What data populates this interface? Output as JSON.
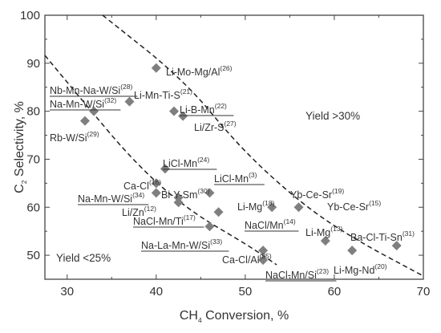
{
  "chart_data": {
    "type": "scatter",
    "title": "",
    "xlabel": {
      "prefix": "CH",
      "sub": "4",
      "suffix": " Conversion, %"
    },
    "ylabel": {
      "prefix": "C",
      "sub": "2",
      "suffix": " Selectivity, %"
    },
    "xlim": [
      27.5,
      70
    ],
    "ylim": [
      45,
      100
    ],
    "xticks": [
      30,
      40,
      50,
      60,
      70
    ],
    "yticks": [
      50,
      60,
      70,
      80,
      90,
      100
    ],
    "grid": false,
    "legend": "none",
    "marker_color": "#7f7f7f",
    "points": [
      {
        "x": 40,
        "y": 89,
        "label": "Li-Mo-Mg/Al",
        "ref": "(26)",
        "underline": false
      },
      {
        "x": 37,
        "y": 82,
        "label": "Nb-Mn-Na-W/Si",
        "ref": "(28)",
        "underline": true
      },
      {
        "x": 33,
        "y": 80,
        "label": "Na-Mn-W/Si",
        "ref": "(32)",
        "underline": true
      },
      {
        "x": 32,
        "y": 78,
        "label": "Rb-W/Si",
        "ref": "(29)",
        "underline": false
      },
      {
        "x": 42,
        "y": 80,
        "label": "Li-Mn-Ti-S",
        "ref": "(21)",
        "underline": false
      },
      {
        "x": 43,
        "y": 79,
        "label": "Li-B-Mn",
        "ref": "(22)",
        "underline": true
      },
      {
        "x": 41,
        "y": 68,
        "label": "LiCl-Mn",
        "ref": "(24)",
        "underline": true
      },
      {
        "x": 40,
        "y": 65,
        "label": "Ca-Cl",
        "ref": "(16)",
        "underline": false
      },
      {
        "x": 40,
        "y": 63,
        "label": "Bi-Y-Sm",
        "ref": "(30)",
        "underline": false
      },
      {
        "x": 42.5,
        "y": 62,
        "label": "Na-Mn-W/Si",
        "ref": "(34)",
        "underline": true
      },
      {
        "x": 42.5,
        "y": 61,
        "label": "Li/Zn",
        "ref": "(12)",
        "underline": false
      },
      {
        "x": 46,
        "y": 63,
        "label": "LiCl-Mn",
        "ref": "(3)",
        "underline": true
      },
      {
        "x": 47,
        "y": 59,
        "label": "Li-Mg",
        "ref": "(18)",
        "underline": false
      },
      {
        "x": 46,
        "y": 56,
        "label": "NaCl/Mn",
        "ref": "(14)",
        "underline": true
      },
      {
        "x": 53,
        "y": 60,
        "label": "Yb-Ce-Sr",
        "ref": "(19)",
        "underline": false
      },
      {
        "x": 56,
        "y": 60,
        "label": "Yb-Ce-Sr",
        "ref": "(15)",
        "underline": false
      },
      {
        "x": 52,
        "y": 51,
        "label": "Ca-Cl/Al",
        "ref": "(25)",
        "underline": false
      },
      {
        "x": 52,
        "y": 49,
        "label": "NaCl-Mn/Si",
        "ref": "(23)",
        "underline": true
      },
      {
        "x": 59,
        "y": 53,
        "label": "Li-Mg",
        "ref": "(13)",
        "underline": false
      },
      {
        "x": 62,
        "y": 51,
        "label": "Li-Mg-Nd",
        "ref": "(20)",
        "underline": false
      },
      {
        "x": 67,
        "y": 52,
        "label": "Ba-Cl-Ti-Sn",
        "ref": "(31)",
        "underline": false
      }
    ],
    "extra_labels": [
      {
        "label": "Li/Zr-S",
        "ref": "(27)",
        "underline": false
      },
      {
        "label": "NaCl-Mn/Ti",
        "ref": "(17)",
        "underline": true
      },
      {
        "label": "Na-La-Mn-W/Si",
        "ref": "(33)",
        "underline": true
      }
    ],
    "annotations": [
      {
        "text": "Yield >30%"
      },
      {
        "text": "Yield <25%"
      }
    ]
  }
}
